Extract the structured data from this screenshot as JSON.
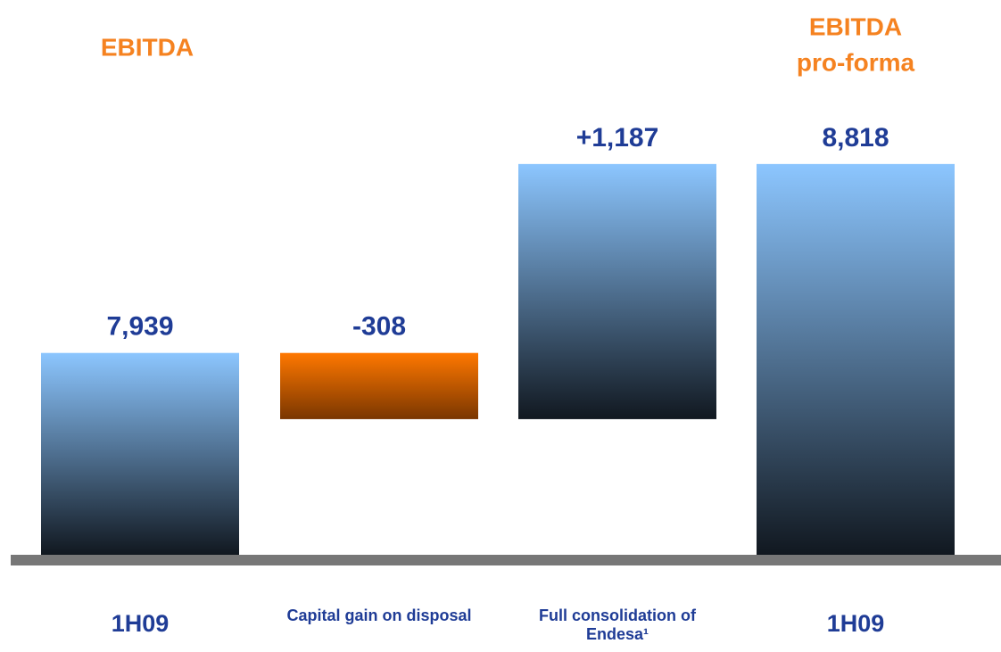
{
  "chart_data": {
    "type": "waterfall",
    "left_header": "EBITDA",
    "right_header": [
      "EBITDA",
      "pro-forma"
    ],
    "categories": [
      "1H09",
      "Capital gain on disposal",
      "Full consolidation of Endesa¹",
      "1H09"
    ],
    "values": [
      7939,
      -308,
      1187,
      8818
    ],
    "value_labels": [
      "7,939",
      "-308",
      "+1,187",
      "8,818"
    ],
    "measure": [
      "absolute",
      "relative",
      "relative",
      "absolute"
    ],
    "colors": [
      "#8cc6ff",
      "#ff7800",
      "#8cc6ff",
      "#8cc6ff"
    ],
    "ylim": [
      7000,
      9000
    ],
    "grid": false
  }
}
